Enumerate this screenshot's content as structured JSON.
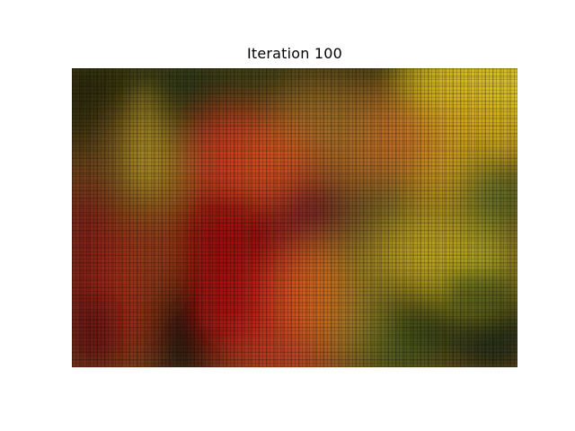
{
  "figure": {
    "title": "Iteration 100"
  },
  "image": {
    "description_colors": {
      "dark_olive": "#2f3a12",
      "red": "#b8140c",
      "dark_red": "#7a0a0c",
      "orange": "#d8521a",
      "yellow": "#d6c21c",
      "dark_green": "#1e2a12",
      "olive": "#6f7a24"
    }
  }
}
